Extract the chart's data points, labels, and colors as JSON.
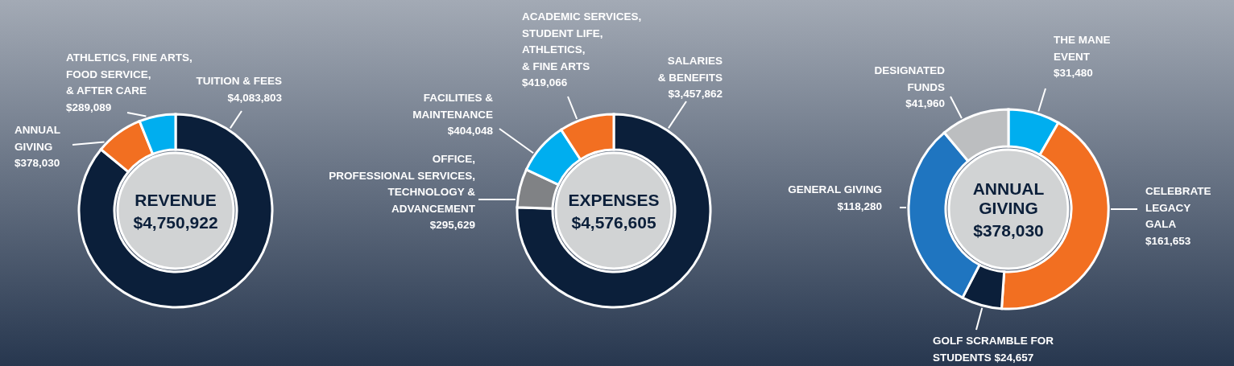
{
  "chart_data": [
    {
      "type": "donut",
      "title": "REVENUE",
      "subtitle": "$4,750,922",
      "categories": [
        "TUITION & FEES",
        "ANNUAL\nGIVING",
        "ATHLETICS, FINE ARTS,\nFOOD SERVICE,\n& AFTER CARE"
      ],
      "values": [
        4083803,
        378030,
        289089
      ],
      "colors": [
        "#0b1f3a",
        "#f26f21",
        "#00aeef"
      ],
      "value_labels": [
        "$4,083,803",
        "$378,030",
        "$289,089"
      ]
    },
    {
      "type": "donut",
      "title": "EXPENSES",
      "subtitle": "$4,576,605",
      "categories": [
        "SALARIES\n& BENEFITS",
        "OFFICE,\nPROFESSIONAL SERVICES,\nTECHNOLOGY &\nADVANCEMENT",
        "FACILITIES &\nMAINTENANCE",
        "ACADEMIC SERVICES,\nSTUDENT LIFE,\nATHLETICS,\n& FINE ARTS"
      ],
      "values": [
        3457862,
        295629,
        404048,
        419066
      ],
      "colors": [
        "#0b1f3a",
        "#808285",
        "#00aeef",
        "#f26f21"
      ],
      "value_labels": [
        "$3,457,862",
        "$295,629",
        "$404,048",
        "$419,066"
      ]
    },
    {
      "type": "donut",
      "title": "ANNUAL\nGIVING",
      "subtitle": "$378,030",
      "categories": [
        "THE MANE\nEVENT",
        "CELEBRATE\nLEGACY\nGALA",
        "GOLF SCRAMBLE FOR\nSTUDENTS",
        "GENERAL GIVING",
        "DESIGNATED\nFUNDS"
      ],
      "values": [
        31480,
        161653,
        24657,
        118280,
        41960
      ],
      "colors": [
        "#00aeef",
        "#f26f21",
        "#0b1f3a",
        "#1f75c0",
        "#bcbec0"
      ],
      "value_labels": [
        "$31,480",
        "$161,653",
        "$24,657",
        "$118,280",
        "$41,960"
      ]
    }
  ]
}
